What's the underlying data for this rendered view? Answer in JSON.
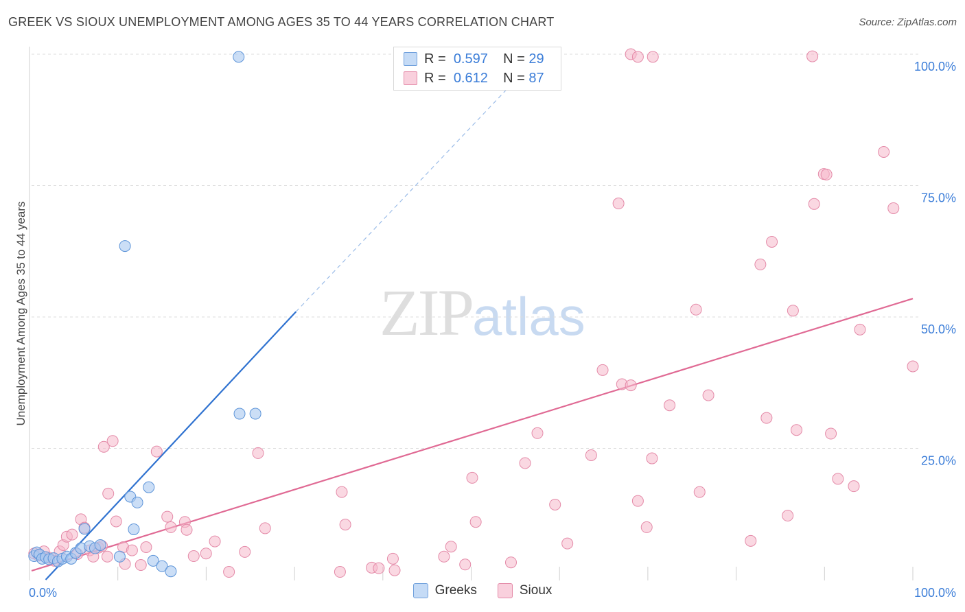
{
  "header": {
    "title": "GREEK VS SIOUX UNEMPLOYMENT AMONG AGES 35 TO 44 YEARS CORRELATION CHART",
    "source": "Source: ZipAtlas.com"
  },
  "watermark": {
    "zip": "ZIP",
    "atlas": "atlas"
  },
  "legend": {
    "rows": [
      {
        "r_label": "R =",
        "r_value": "0.597",
        "n_label": "N =",
        "n_value": "29",
        "color": "#a8c8f0"
      },
      {
        "r_label": "R =",
        "r_value": "0.612",
        "n_label": "N =",
        "n_value": "87",
        "color": "#f5b8cb"
      }
    ]
  },
  "bottom_legend": {
    "greeks": "Greeks",
    "sioux": "Sioux"
  },
  "colors": {
    "greeks_fill": "#a8c8f0",
    "greeks_stroke": "#5b93d8",
    "greeks_line": "#2f72d0",
    "sioux_fill": "#f5b8cb",
    "sioux_stroke": "#e48aa8",
    "sioux_line": "#e06a94",
    "tick_label": "#3b7dd8",
    "grid": "#dcdcdc"
  },
  "chart_data": {
    "type": "scatter",
    "title": "GREEK VS SIOUX UNEMPLOYMENT AMONG AGES 35 TO 44 YEARS CORRELATION CHART",
    "xlabel": "",
    "ylabel": "Unemployment Among Ages 35 to 44 years",
    "xlim": [
      0,
      100
    ],
    "ylim": [
      0,
      100
    ],
    "x_tick_labels": [
      "0.0%",
      "100.0%"
    ],
    "y_tick_labels": [
      {
        "value": 100,
        "label": "100.0%"
      },
      {
        "value": 75,
        "label": "75.0%"
      },
      {
        "value": 50,
        "label": "50.0%"
      },
      {
        "value": 25,
        "label": "25.0%"
      }
    ],
    "grid": true,
    "legend_position": "top-center",
    "series": [
      {
        "name": "Greeks",
        "r": 0.597,
        "n": 29,
        "trend": {
          "x0": 1.6,
          "y0": 0,
          "x1": 30,
          "y1": 51,
          "dashed_to_x": 56,
          "dashed_to_y": 97
        },
        "points": [
          [
            0.3,
            4.5
          ],
          [
            0.6,
            5.2
          ],
          [
            0.9,
            4.8
          ],
          [
            1.2,
            4.0
          ],
          [
            1.6,
            4.3
          ],
          [
            2.0,
            3.9
          ],
          [
            2.5,
            4.1
          ],
          [
            3.0,
            3.5
          ],
          [
            3.5,
            4.0
          ],
          [
            4.0,
            4.4
          ],
          [
            4.5,
            4.0
          ],
          [
            5.0,
            5.1
          ],
          [
            5.6,
            6.0
          ],
          [
            6.0,
            9.7
          ],
          [
            6.6,
            6.4
          ],
          [
            7.2,
            6.0
          ],
          [
            7.8,
            6.6
          ],
          [
            10.0,
            4.4
          ],
          [
            10.6,
            63.5
          ],
          [
            11.2,
            15.8
          ],
          [
            11.6,
            9.6
          ],
          [
            12.0,
            14.7
          ],
          [
            13.3,
            17.6
          ],
          [
            13.8,
            3.6
          ],
          [
            14.8,
            2.6
          ],
          [
            15.8,
            1.6
          ],
          [
            23.6,
            31.6
          ],
          [
            25.4,
            31.6
          ],
          [
            23.5,
            99.5
          ]
        ]
      },
      {
        "name": "Sioux",
        "r": 0.612,
        "n": 87,
        "trend": {
          "x0": 0,
          "y0": 1.7,
          "x1": 100,
          "y1": 53.5
        },
        "points": [
          [
            0.3,
            5.0
          ],
          [
            0.8,
            4.6
          ],
          [
            1.4,
            5.4
          ],
          [
            2.0,
            4.2
          ],
          [
            2.6,
            3.6
          ],
          [
            3.2,
            5.4
          ],
          [
            3.6,
            6.6
          ],
          [
            4.0,
            8.2
          ],
          [
            4.6,
            8.6
          ],
          [
            5.2,
            4.9
          ],
          [
            5.6,
            11.5
          ],
          [
            6.0,
            9.9
          ],
          [
            6.6,
            5.6
          ],
          [
            7.0,
            4.4
          ],
          [
            7.6,
            6.1
          ],
          [
            8.0,
            6.4
          ],
          [
            8.6,
            4.4
          ],
          [
            8.2,
            25.3
          ],
          [
            8.7,
            16.4
          ],
          [
            9.2,
            26.4
          ],
          [
            9.6,
            11.1
          ],
          [
            10.4,
            6.2
          ],
          [
            10.6,
            3.0
          ],
          [
            11.4,
            5.6
          ],
          [
            12.4,
            2.8
          ],
          [
            13.0,
            6.2
          ],
          [
            14.2,
            24.4
          ],
          [
            15.4,
            12.0
          ],
          [
            15.8,
            10.0
          ],
          [
            17.4,
            11.0
          ],
          [
            17.6,
            9.5
          ],
          [
            18.4,
            4.5
          ],
          [
            19.8,
            5.0
          ],
          [
            20.8,
            7.3
          ],
          [
            22.4,
            1.5
          ],
          [
            24.2,
            5.3
          ],
          [
            25.7,
            24.1
          ],
          [
            26.5,
            9.8
          ],
          [
            35.2,
            16.7
          ],
          [
            35.6,
            10.5
          ],
          [
            35.0,
            1.5
          ],
          [
            38.6,
            2.3
          ],
          [
            39.4,
            2.2
          ],
          [
            41.0,
            4.0
          ],
          [
            41.2,
            1.8
          ],
          [
            46.8,
            4.4
          ],
          [
            47.6,
            6.3
          ],
          [
            49.2,
            2.9
          ],
          [
            50.0,
            19.4
          ],
          [
            50.4,
            11.0
          ],
          [
            54.4,
            3.3
          ],
          [
            56.0,
            22.2
          ],
          [
            57.4,
            27.9
          ],
          [
            59.4,
            14.3
          ],
          [
            60.8,
            6.9
          ],
          [
            63.5,
            23.7
          ],
          [
            64.8,
            39.9
          ],
          [
            67.0,
            37.2
          ],
          [
            68.0,
            100
          ],
          [
            68.8,
            99.5
          ],
          [
            70.5,
            99.5
          ],
          [
            66.6,
            71.6
          ],
          [
            68.0,
            37.0
          ],
          [
            68.8,
            15.0
          ],
          [
            69.8,
            10.0
          ],
          [
            70.4,
            23.1
          ],
          [
            72.4,
            33.2
          ],
          [
            75.4,
            51.4
          ],
          [
            75.8,
            16.7
          ],
          [
            76.8,
            35.1
          ],
          [
            81.6,
            7.4
          ],
          [
            82.7,
            60.0
          ],
          [
            83.4,
            30.8
          ],
          [
            84.0,
            64.3
          ],
          [
            85.8,
            12.2
          ],
          [
            86.4,
            51.2
          ],
          [
            86.8,
            28.5
          ],
          [
            88.6,
            99.6
          ],
          [
            88.8,
            71.5
          ],
          [
            89.9,
            77.2
          ],
          [
            90.2,
            77.1
          ],
          [
            90.7,
            27.8
          ],
          [
            91.5,
            19.2
          ],
          [
            93.3,
            17.8
          ],
          [
            94.0,
            47.6
          ],
          [
            96.7,
            81.4
          ],
          [
            97.8,
            70.7
          ],
          [
            100.0,
            40.6
          ]
        ]
      }
    ]
  }
}
